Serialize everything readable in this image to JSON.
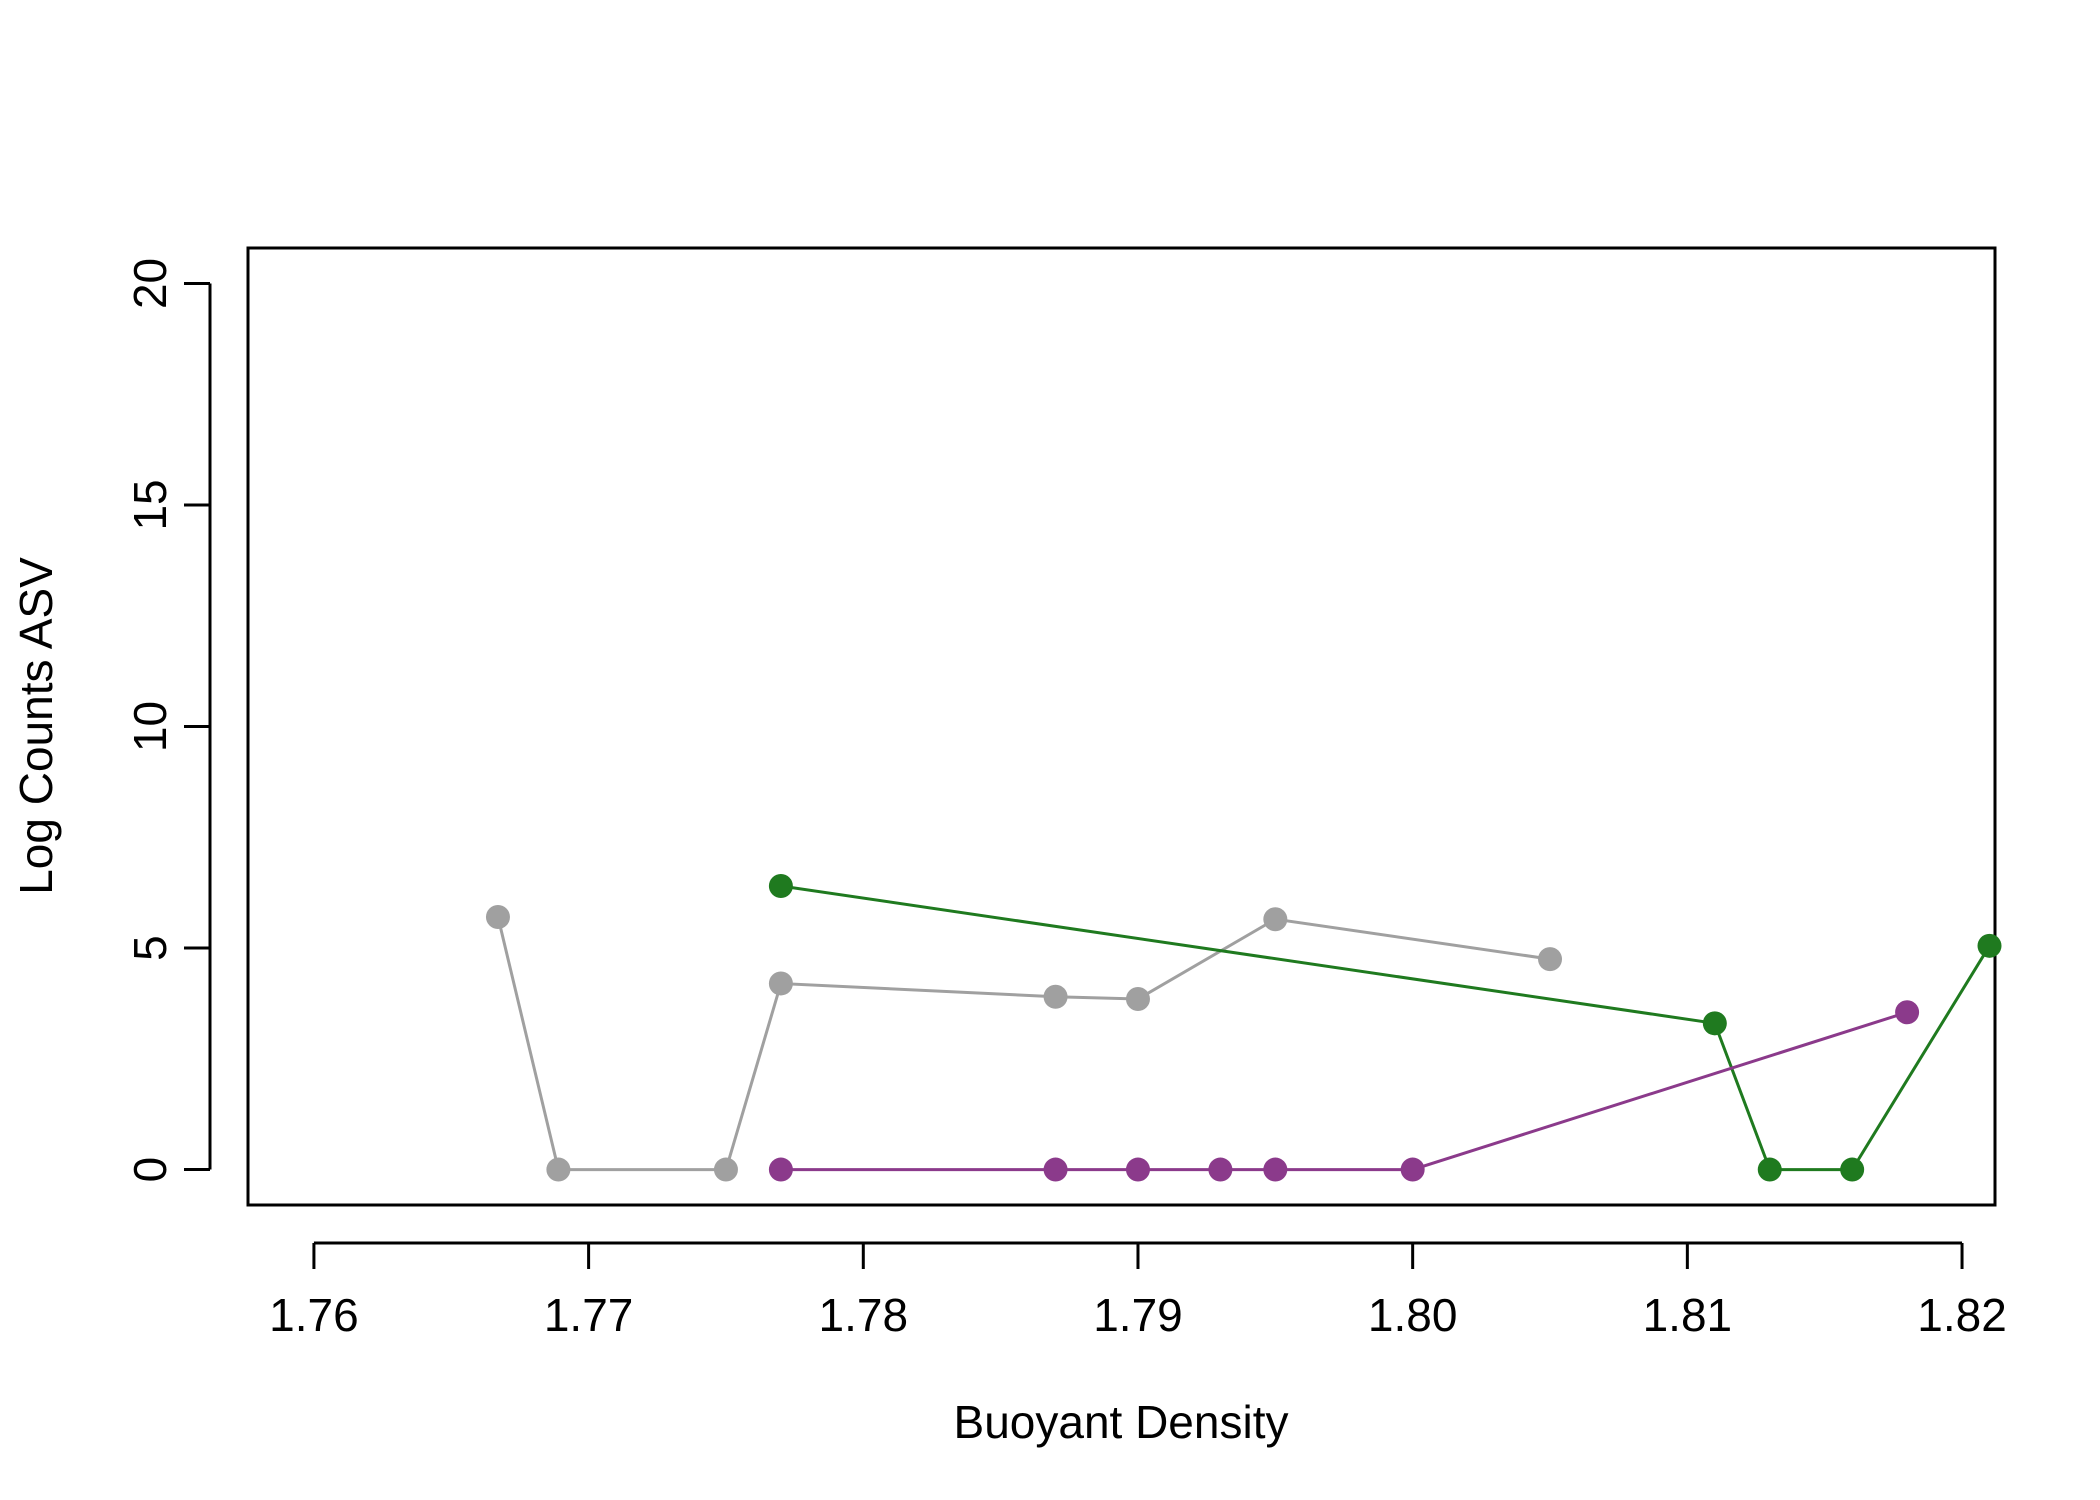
{
  "chart_data": {
    "type": "line",
    "title": "",
    "xlabel": "Buoyant Density",
    "ylabel": "Log Counts ASV",
    "xlim": [
      1.7576,
      1.8212
    ],
    "ylim": [
      -0.8,
      20.8
    ],
    "x_ticks": [
      1.76,
      1.77,
      1.78,
      1.79,
      1.8,
      1.81,
      1.82
    ],
    "x_tick_labels": [
      "1.76",
      "1.77",
      "1.78",
      "1.79",
      "1.80",
      "1.81",
      "1.82"
    ],
    "y_ticks": [
      0,
      5,
      10,
      15,
      20
    ],
    "y_tick_labels": [
      "0",
      "5",
      "10",
      "15",
      "20"
    ],
    "grid": false,
    "legend": "none",
    "series": [
      {
        "color": "#a0a0a0",
        "points": [
          [
            1.7667,
            5.7
          ],
          [
            1.7689,
            0
          ],
          [
            1.775,
            0
          ],
          [
            1.777,
            4.2
          ],
          [
            1.787,
            3.9
          ],
          [
            1.79,
            3.85
          ],
          [
            1.795,
            5.65
          ],
          [
            1.805,
            4.75
          ]
        ]
      },
      {
        "color": "#1f7a1f",
        "points": [
          [
            1.777,
            6.4
          ],
          [
            1.811,
            3.3
          ],
          [
            1.813,
            0
          ],
          [
            1.816,
            0
          ],
          [
            1.821,
            5.05
          ]
        ]
      },
      {
        "color": "#8b3a8b",
        "points": [
          [
            1.777,
            0
          ],
          [
            1.787,
            0
          ],
          [
            1.79,
            0
          ],
          [
            1.793,
            0
          ],
          [
            1.795,
            0
          ],
          [
            1.8,
            0
          ],
          [
            1.818,
            3.55
          ]
        ]
      }
    ]
  }
}
